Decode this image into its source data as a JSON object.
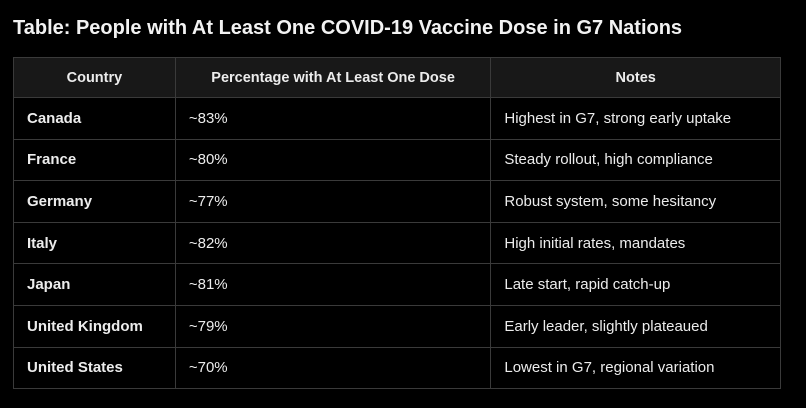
{
  "title": "Table: People with At Least One COVID-19 Vaccine Dose in G7 Nations",
  "table": {
    "headers": [
      "Country",
      "Percentage with At Least One Dose",
      "Notes"
    ],
    "rows": [
      {
        "country": "Canada",
        "percentage": "~83%",
        "notes": "Highest in G7, strong early uptake"
      },
      {
        "country": "France",
        "percentage": "~80%",
        "notes": "Steady rollout, high compliance"
      },
      {
        "country": "Germany",
        "percentage": "~77%",
        "notes": "Robust system, some hesitancy"
      },
      {
        "country": "Italy",
        "percentage": "~82%",
        "notes": "High initial rates, mandates"
      },
      {
        "country": "Japan",
        "percentage": "~81%",
        "notes": "Late start, rapid catch-up"
      },
      {
        "country": "United Kingdom",
        "percentage": "~79%",
        "notes": "Early leader, slightly plateaued"
      },
      {
        "country": "United States",
        "percentage": "~70%",
        "notes": "Lowest in G7, regional variation"
      }
    ]
  },
  "colors": {
    "background": "#000000",
    "header_background": "#181818",
    "border": "#3a3a3a",
    "text": "#ececec"
  }
}
